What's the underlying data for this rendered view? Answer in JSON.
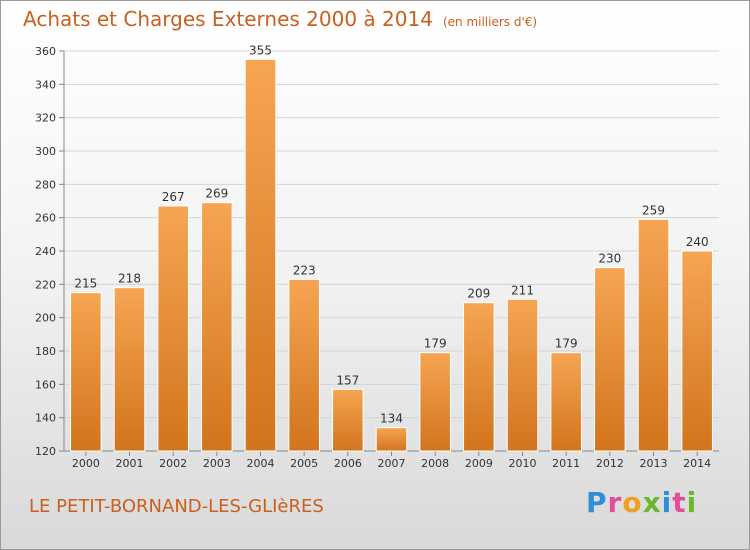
{
  "title": "Achats et Charges Externes 2000 à 2014",
  "unit": "(en milliers d'€)",
  "city": "LE PETIT-BORNAND-LES-GLIèRES",
  "logo": "Proxiti",
  "colors": {
    "bar_light": "#f6a553",
    "bar_dark": "#d2741c",
    "title": "#c9601e"
  },
  "chart_data": {
    "type": "bar",
    "title": "Achats et Charges Externes 2000 à 2014",
    "xlabel": "",
    "ylabel": "",
    "categories": [
      "2000",
      "2001",
      "2002",
      "2003",
      "2004",
      "2005",
      "2006",
      "2007",
      "2008",
      "2009",
      "2010",
      "2011",
      "2012",
      "2013",
      "2014"
    ],
    "values": [
      215,
      218,
      267,
      269,
      355,
      223,
      157,
      134,
      179,
      209,
      211,
      179,
      230,
      259,
      240
    ],
    "ylim": [
      120,
      360
    ],
    "yticks": [
      120,
      140,
      160,
      180,
      200,
      220,
      240,
      260,
      280,
      300,
      320,
      340,
      360
    ],
    "grid": true,
    "legend": "none"
  }
}
